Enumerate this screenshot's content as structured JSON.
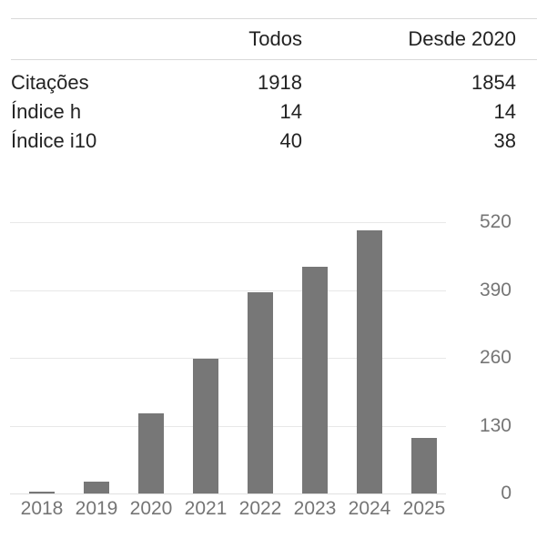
{
  "colors": {
    "bar": "#777777",
    "axis_label": "#757575",
    "table_text": "#222222",
    "divider": "#d9d9d9",
    "gridline": "#e8e8e8"
  },
  "table": {
    "columns": [
      "Todos",
      "Desde 2020"
    ],
    "rows": [
      {
        "label": "Citações",
        "all": "1918",
        "since": "1854"
      },
      {
        "label": "Índice h",
        "all": "14",
        "since": "14"
      },
      {
        "label": "Índice i10",
        "all": "40",
        "since": "38"
      }
    ]
  },
  "chart_data": {
    "type": "bar",
    "title": "",
    "xlabel": "",
    "ylabel": "",
    "categories": [
      "2018",
      "2019",
      "2020",
      "2021",
      "2022",
      "2023",
      "2024",
      "2025"
    ],
    "values": [
      4,
      22,
      153,
      258,
      385,
      435,
      505,
      106
    ],
    "ylim": [
      0,
      520
    ],
    "yticks": [
      0,
      130,
      260,
      390,
      520
    ],
    "ytick_side": "right",
    "grid": true,
    "legend": "none",
    "bar_color": "#777777"
  }
}
